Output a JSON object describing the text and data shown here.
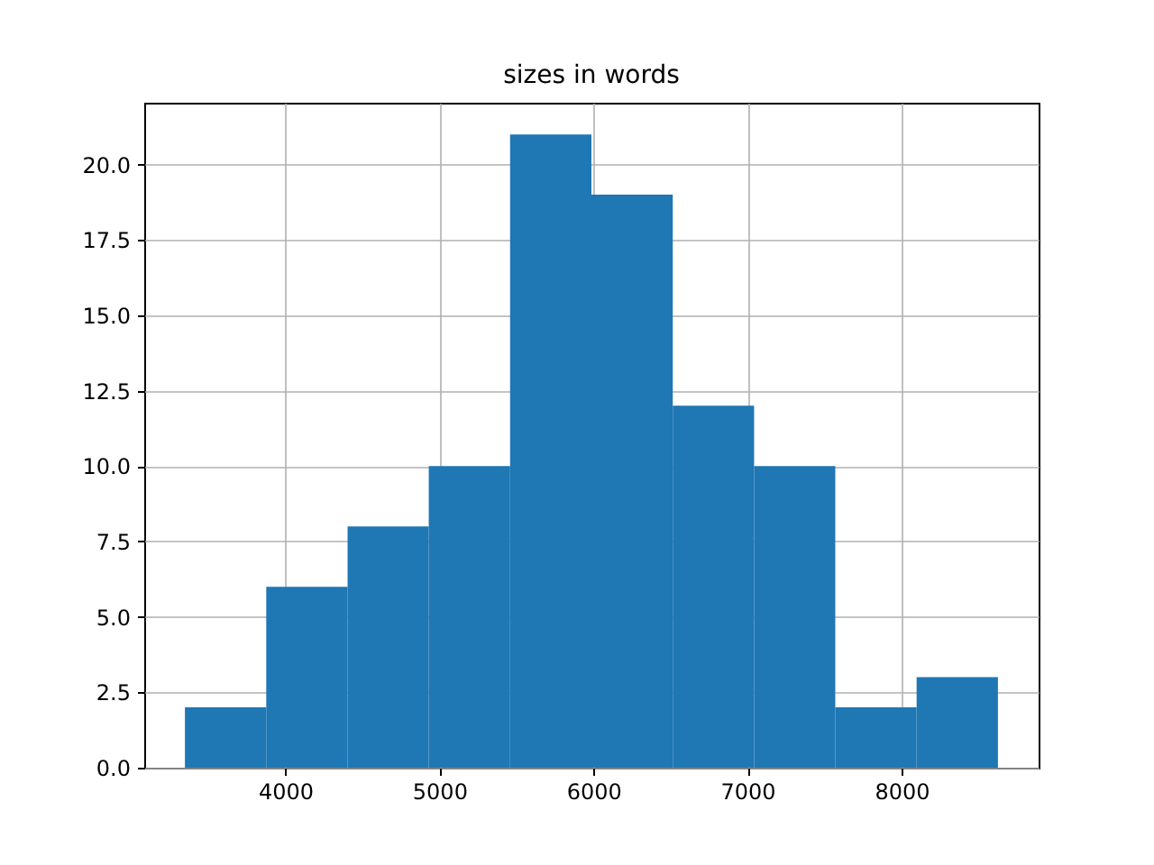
{
  "chart_data": {
    "type": "histogram",
    "title": "sizes in words",
    "bins": [
      3348,
      3876,
      4404,
      4931,
      5459,
      5987,
      6515,
      7043,
      7570,
      8098,
      8626
    ],
    "values": [
      2,
      6,
      8,
      10,
      21,
      19,
      12,
      10,
      2,
      3
    ],
    "color": "#1f77b4",
    "xlim": [
      3084,
      8890
    ],
    "xticks": [
      4000,
      5000,
      6000,
      7000,
      8000
    ],
    "ylim": [
      0,
      22.05
    ],
    "yticks": [
      {
        "value": 0,
        "label": "0.0"
      },
      {
        "value": 2.5,
        "label": "2.5"
      },
      {
        "value": 5,
        "label": "5.0"
      },
      {
        "value": 7.5,
        "label": "7.5"
      },
      {
        "value": 10,
        "label": "10.0"
      },
      {
        "value": 12.5,
        "label": "12.5"
      },
      {
        "value": 15,
        "label": "15.0"
      },
      {
        "value": 17.5,
        "label": "17.5"
      },
      {
        "value": 20,
        "label": "20.0"
      }
    ],
    "grid": true
  }
}
